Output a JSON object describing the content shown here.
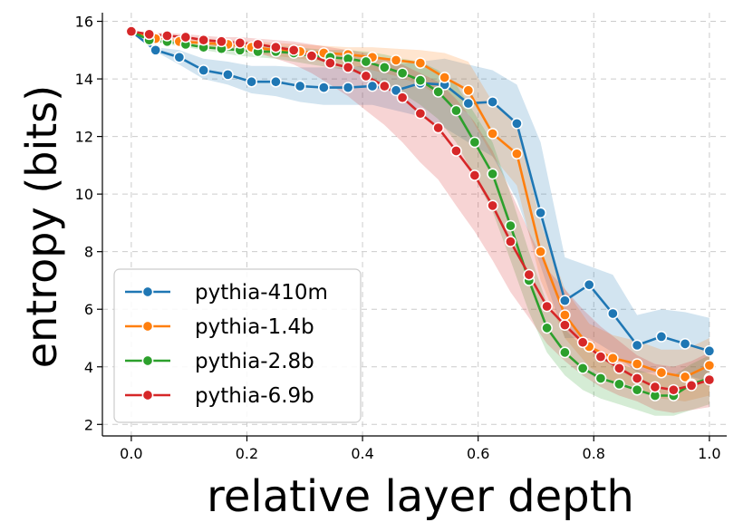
{
  "chart_data": {
    "type": "line",
    "title": "",
    "xlabel": "relative layer depth",
    "ylabel": "entropy (bits)",
    "xlim": [
      -0.05,
      1.03
    ],
    "ylim": [
      1.6,
      16.3
    ],
    "xticks": [
      0.0,
      0.2,
      0.4,
      0.6,
      0.8,
      1.0
    ],
    "xtick_labels": [
      "0.0",
      "0.2",
      "0.4",
      "0.6",
      "0.8",
      "1.0"
    ],
    "yticks": [
      2,
      4,
      6,
      8,
      10,
      12,
      14,
      16
    ],
    "ytick_labels": [
      "2",
      "4",
      "6",
      "8",
      "10",
      "12",
      "14",
      "16"
    ],
    "grid": true,
    "legend_position": "lower-left",
    "series": [
      {
        "name": "pythia-410m",
        "color": "#1f77b4",
        "x": [
          0.0,
          0.042,
          0.083,
          0.125,
          0.167,
          0.208,
          0.25,
          0.292,
          0.333,
          0.375,
          0.417,
          0.458,
          0.5,
          0.542,
          0.583,
          0.625,
          0.667,
          0.708,
          0.75,
          0.792,
          0.833,
          0.875,
          0.917,
          0.958,
          1.0
        ],
        "y": [
          15.65,
          15.0,
          14.75,
          14.3,
          14.15,
          13.9,
          13.9,
          13.75,
          13.7,
          13.7,
          13.75,
          13.6,
          13.85,
          13.8,
          13.15,
          13.2,
          12.45,
          9.35,
          6.3,
          6.85,
          5.85,
          4.75,
          5.05,
          4.8,
          4.55
        ],
        "lower": [
          15.65,
          14.95,
          14.5,
          14.0,
          13.8,
          13.5,
          13.4,
          13.2,
          13.1,
          13.1,
          13.1,
          12.9,
          12.7,
          12.3,
          11.8,
          11.3,
          9.8,
          7.5,
          5.0,
          5.0,
          4.5,
          3.8,
          3.8,
          3.7,
          3.5
        ],
        "upper": [
          15.65,
          15.1,
          15.0,
          14.7,
          14.6,
          14.45,
          14.45,
          14.4,
          14.4,
          14.4,
          14.5,
          14.5,
          14.6,
          14.7,
          14.5,
          14.3,
          13.8,
          11.8,
          7.8,
          7.5,
          7.2,
          5.8,
          6.0,
          5.9,
          5.7
        ]
      },
      {
        "name": "pythia-1.4b",
        "color": "#ff7f0e",
        "x": [
          0.0,
          0.042,
          0.083,
          0.125,
          0.167,
          0.208,
          0.25,
          0.292,
          0.333,
          0.375,
          0.417,
          0.458,
          0.5,
          0.542,
          0.583,
          0.625,
          0.667,
          0.708,
          0.75,
          0.792,
          0.833,
          0.875,
          0.917,
          0.958,
          1.0
        ],
        "y": [
          15.65,
          15.4,
          15.3,
          15.25,
          15.2,
          15.1,
          15.0,
          14.95,
          14.9,
          14.85,
          14.75,
          14.65,
          14.55,
          14.05,
          13.6,
          12.1,
          11.4,
          8.0,
          5.8,
          4.7,
          4.3,
          4.1,
          3.8,
          3.65,
          4.05
        ],
        "lower": [
          15.65,
          15.35,
          15.2,
          15.1,
          15.0,
          14.9,
          14.8,
          14.7,
          14.6,
          14.5,
          14.3,
          14.1,
          13.8,
          13.3,
          12.8,
          11.3,
          10.3,
          7.0,
          5.0,
          4.0,
          3.5,
          3.3,
          2.9,
          2.8,
          3.0
        ],
        "upper": [
          15.65,
          15.45,
          15.4,
          15.35,
          15.35,
          15.3,
          15.25,
          15.2,
          15.15,
          15.1,
          15.1,
          15.05,
          15.0,
          14.9,
          14.6,
          13.2,
          12.5,
          9.0,
          6.7,
          5.5,
          5.1,
          4.9,
          4.6,
          4.6,
          5.0
        ]
      },
      {
        "name": "pythia-2.8b",
        "color": "#2ca02c",
        "x": [
          0.0,
          0.031,
          0.062,
          0.094,
          0.125,
          0.156,
          0.188,
          0.219,
          0.25,
          0.281,
          0.312,
          0.344,
          0.375,
          0.406,
          0.438,
          0.469,
          0.5,
          0.531,
          0.562,
          0.594,
          0.625,
          0.656,
          0.688,
          0.719,
          0.75,
          0.781,
          0.812,
          0.844,
          0.875,
          0.906,
          0.938,
          0.969,
          1.0
        ],
        "y": [
          15.65,
          15.35,
          15.3,
          15.2,
          15.1,
          15.05,
          15.0,
          14.95,
          14.95,
          14.9,
          14.8,
          14.75,
          14.7,
          14.6,
          14.4,
          14.2,
          13.95,
          13.55,
          12.9,
          11.8,
          10.7,
          8.9,
          7.0,
          5.35,
          4.5,
          3.95,
          3.6,
          3.4,
          3.2,
          3.0,
          3.0,
          3.4,
          3.6
        ],
        "lower": [
          15.65,
          15.3,
          15.2,
          15.1,
          15.0,
          14.9,
          14.8,
          14.75,
          14.7,
          14.6,
          14.5,
          14.4,
          14.3,
          14.1,
          13.8,
          13.5,
          13.1,
          12.6,
          11.8,
          10.6,
          9.4,
          7.7,
          5.9,
          4.5,
          3.7,
          3.2,
          2.9,
          2.7,
          2.5,
          2.3,
          2.3,
          2.5,
          2.7
        ],
        "upper": [
          15.65,
          15.4,
          15.4,
          15.3,
          15.25,
          15.2,
          15.2,
          15.15,
          15.15,
          15.1,
          15.05,
          15.0,
          15.0,
          14.95,
          14.85,
          14.7,
          14.6,
          14.3,
          13.8,
          12.8,
          11.8,
          10.0,
          8.0,
          6.2,
          5.3,
          4.7,
          4.3,
          4.1,
          3.9,
          3.7,
          3.7,
          4.1,
          4.4
        ]
      },
      {
        "name": "pythia-6.9b",
        "color": "#d62728",
        "x": [
          0.0,
          0.031,
          0.062,
          0.094,
          0.125,
          0.156,
          0.188,
          0.219,
          0.25,
          0.281,
          0.312,
          0.344,
          0.375,
          0.406,
          0.438,
          0.469,
          0.5,
          0.531,
          0.562,
          0.594,
          0.625,
          0.656,
          0.688,
          0.719,
          0.75,
          0.781,
          0.812,
          0.844,
          0.875,
          0.906,
          0.938,
          0.969,
          1.0
        ],
        "y": [
          15.65,
          15.55,
          15.5,
          15.45,
          15.35,
          15.3,
          15.25,
          15.2,
          15.1,
          15.0,
          14.8,
          14.55,
          14.4,
          14.1,
          13.75,
          13.35,
          12.8,
          12.3,
          11.5,
          10.65,
          9.6,
          8.35,
          7.2,
          6.1,
          5.45,
          4.85,
          4.35,
          3.95,
          3.6,
          3.3,
          3.2,
          3.35,
          3.55
        ],
        "lower": [
          15.65,
          15.5,
          15.4,
          15.3,
          15.2,
          15.1,
          15.0,
          14.9,
          14.7,
          14.5,
          14.2,
          13.8,
          13.4,
          12.9,
          12.4,
          11.8,
          11.1,
          10.5,
          9.6,
          8.7,
          7.7,
          6.6,
          5.7,
          4.8,
          4.2,
          3.7,
          3.3,
          3.0,
          2.8,
          2.5,
          2.4,
          2.5,
          2.6
        ],
        "upper": [
          15.65,
          15.6,
          15.6,
          15.55,
          15.5,
          15.45,
          15.45,
          15.4,
          15.35,
          15.3,
          15.2,
          15.1,
          15.0,
          14.9,
          14.7,
          14.5,
          14.2,
          13.9,
          13.3,
          12.5,
          11.5,
          10.1,
          8.7,
          7.4,
          6.7,
          6.0,
          5.4,
          4.9,
          4.4,
          4.1,
          4.0,
          4.2,
          4.5
        ]
      }
    ]
  }
}
